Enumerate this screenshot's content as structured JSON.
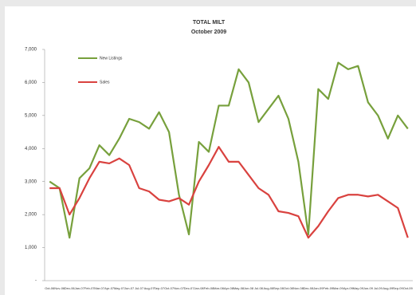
{
  "chart_data": {
    "type": "line",
    "title": "TOTAL MILT",
    "subtitle": "October 2009",
    "categories": [
      "Oct-06",
      "Nov-06",
      "Dec-06",
      "Jan-07",
      "Feb-07",
      "Mar-07",
      "Apr-07",
      "May-07",
      "Jun-07",
      "Jul-07",
      "Aug-07",
      "Sep-07",
      "Oct-07",
      "Nov-07",
      "Dec-07",
      "Jan-08",
      "Feb-08",
      "Mar-08",
      "Apr-08",
      "May-08",
      "Jun-08",
      "Jul-08",
      "Aug-08",
      "Sep-08",
      "Oct-08",
      "Nov-08",
      "Dec-08",
      "Jan-09",
      "Feb-09",
      "Mar-09",
      "Apr-09",
      "May-09",
      "Jun-09",
      "Jul-09",
      "Aug-09",
      "Sep-09",
      "Oct-09"
    ],
    "series": [
      {
        "name": "New Listings",
        "color": "#77a03c",
        "values": [
          3000,
          2800,
          1300,
          3100,
          3400,
          4100,
          3800,
          4300,
          4900,
          4800,
          4600,
          5100,
          4500,
          2600,
          1400,
          4200,
          3900,
          5300,
          5300,
          6400,
          6000,
          4800,
          5200,
          5600,
          4900,
          3600,
          1400,
          5800,
          5500,
          6600,
          6400,
          6500,
          5400,
          5000,
          4300,
          5000,
          4600
        ]
      },
      {
        "name": "Sales",
        "color": "#d9423f",
        "values": [
          2800,
          2800,
          2000,
          2500,
          3100,
          3600,
          3550,
          3700,
          3500,
          2800,
          2700,
          2450,
          2400,
          2500,
          2300,
          3000,
          3500,
          4050,
          3600,
          3600,
          3200,
          2800,
          2600,
          2100,
          2050,
          1950,
          1300,
          1650,
          2100,
          2500,
          2600,
          2600,
          2550,
          2600,
          2400,
          2200,
          1300
        ]
      }
    ],
    "ylim": [
      0,
      7000
    ],
    "yticks": [
      {
        "value": 0,
        "label": "-"
      },
      {
        "value": 1000,
        "label": "1,000"
      },
      {
        "value": 2000,
        "label": "2,000"
      },
      {
        "value": 3000,
        "label": "3,000"
      },
      {
        "value": 4000,
        "label": "4,000"
      },
      {
        "value": 5000,
        "label": "5,000"
      },
      {
        "value": 6000,
        "label": "6,000"
      },
      {
        "value": 7000,
        "label": "7,000"
      }
    ]
  }
}
